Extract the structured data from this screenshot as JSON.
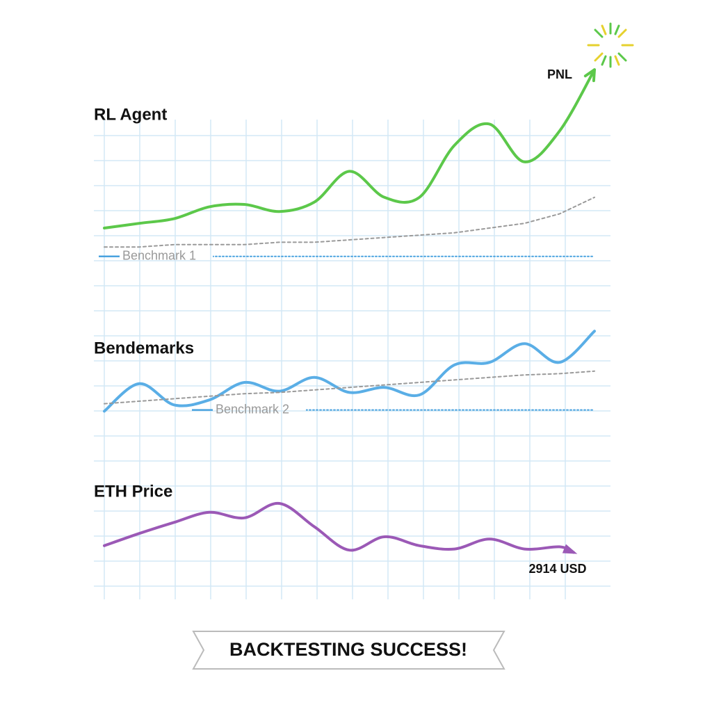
{
  "chart_data": [
    {
      "type": "line",
      "title": "RL Agent",
      "annotation": "PNL",
      "x": [
        0,
        1,
        2,
        3,
        4,
        5,
        6,
        7,
        8,
        9,
        10,
        11,
        12,
        13,
        14
      ],
      "xlim": [
        0,
        14
      ],
      "ylim": [
        0,
        100
      ],
      "series": [
        {
          "color": "#5cc84a",
          "style": "solid",
          "values": [
            30,
            32,
            34,
            39,
            40,
            37,
            41,
            54,
            43,
            43,
            65,
            74,
            58,
            71,
            97
          ]
        },
        {
          "color": "#9a9a9a",
          "style": "dashed",
          "values": [
            22,
            22,
            23,
            23,
            23,
            24,
            24,
            25,
            26,
            27,
            28,
            30,
            32,
            36,
            43
          ]
        },
        {
          "name": "Benchmark 1",
          "color": "#4aa3df",
          "style": "dotted",
          "values": [
            18,
            18,
            18,
            18,
            18,
            18,
            18,
            18,
            18,
            18,
            18,
            18,
            18,
            18,
            18
          ]
        }
      ]
    },
    {
      "type": "line",
      "title": "Bendemarks",
      "x": [
        0,
        1,
        2,
        3,
        4,
        5,
        6,
        7,
        8,
        9,
        10,
        11,
        12,
        13,
        14
      ],
      "xlim": [
        0,
        14
      ],
      "ylim": [
        0,
        100
      ],
      "series": [
        {
          "color": "#5aaee6",
          "style": "solid",
          "values": [
            27,
            49,
            32,
            36,
            50,
            43,
            54,
            42,
            46,
            40,
            64,
            66,
            81,
            66,
            91
          ]
        },
        {
          "color": "#9a9a9a",
          "style": "dashed",
          "values": [
            33,
            35,
            37,
            39,
            41,
            42,
            44,
            46,
            48,
            50,
            52,
            54,
            56,
            57,
            59
          ]
        },
        {
          "name": "Benchmark 2",
          "color": "#4aa3df",
          "style": "dotted",
          "values": [
            28,
            28,
            28,
            28,
            28,
            28,
            28,
            28,
            28,
            28,
            28,
            28,
            28,
            28,
            28
          ]
        }
      ]
    },
    {
      "type": "line",
      "title": "ETH Price",
      "annotation": "2914 USD",
      "x": [
        0,
        1,
        2,
        3,
        4,
        5,
        6,
        7,
        8,
        9,
        10,
        11,
        12,
        13,
        13.4
      ],
      "xlim": [
        0,
        14
      ],
      "ylim": [
        0,
        100
      ],
      "series": [
        {
          "color": "#9b59b6",
          "style": "solid",
          "values": [
            47,
            58,
            68,
            77,
            72,
            85,
            64,
            43,
            55,
            47,
            44,
            53,
            44,
            46,
            41
          ]
        }
      ]
    }
  ],
  "banner": "BACKTESTING SUCCESS!"
}
